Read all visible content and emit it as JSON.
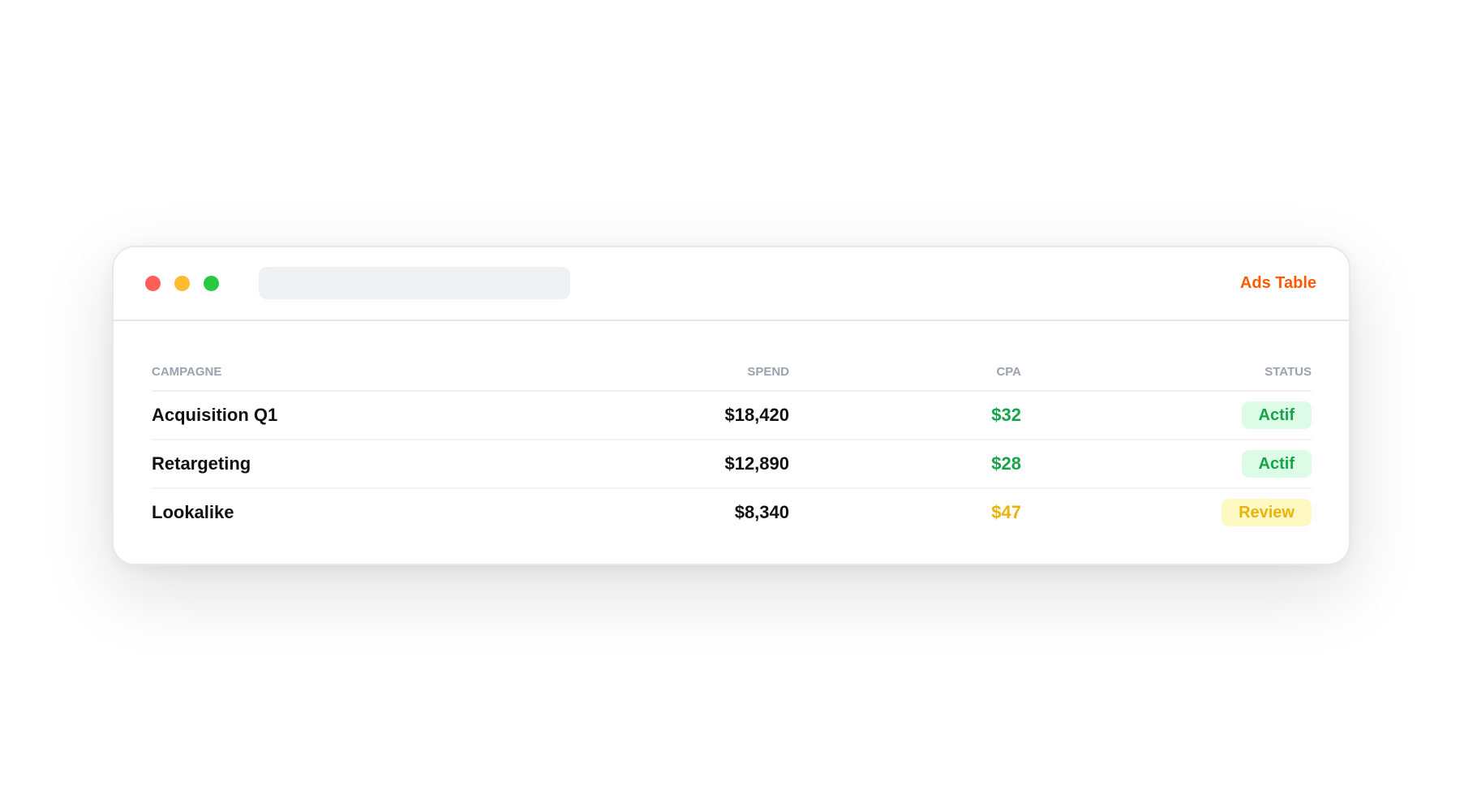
{
  "window": {
    "title": "Ads Table",
    "accent_color": "#ff5a00"
  },
  "table": {
    "headers": [
      "Campagne",
      "Spend",
      "CPA",
      "Status"
    ],
    "rows": [
      {
        "campaign": "Acquisition Q1",
        "spend": "$18,420",
        "cpa": "$32",
        "cpa_color": "#16a34a",
        "status": "Actif",
        "status_color": "#16a34a",
        "status_bg": "#dcfce7"
      },
      {
        "campaign": "Retargeting",
        "spend": "$12,890",
        "cpa": "$28",
        "cpa_color": "#16a34a",
        "status": "Actif",
        "status_color": "#16a34a",
        "status_bg": "#dcfce7"
      },
      {
        "campaign": "Lookalike",
        "spend": "$8,340",
        "cpa": "$47",
        "cpa_color": "#eab308",
        "status": "Review",
        "status_color": "#eab308",
        "status_bg": "#fef9c3"
      }
    ]
  }
}
